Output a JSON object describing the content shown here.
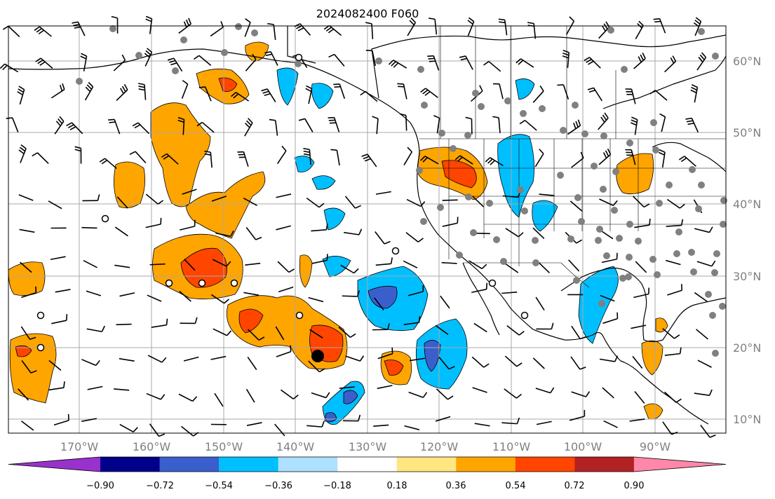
{
  "title": "2024082400 F060",
  "lat_labels": [
    "60°N",
    "50°N",
    "40°N",
    "30°N",
    "20°N",
    "10°N"
  ],
  "lon_labels": [
    "170°W",
    "160°W",
    "150°W",
    "140°W",
    "130°W",
    "120°W",
    "110°W",
    "100°W",
    "90°W"
  ],
  "colorbar": {
    "labels": [
      "−0.90",
      "−0.72",
      "−0.54",
      "−0.36",
      "−0.18",
      "0.18",
      "0.36",
      "0.54",
      "0.72",
      "0.90"
    ],
    "colors": [
      "#9932cc",
      "#00008b",
      "#3a5fcd",
      "#00bfff",
      "#aee0ff",
      "#ffffff",
      "#ffe680",
      "#ffa500",
      "#ff4500",
      "#b22222",
      "#ff88aa"
    ]
  },
  "colors": {
    "orange": "#ffa500",
    "red_orange": "#ff4500",
    "light_blue": "#00bfff",
    "pale_blue": "#aee0ff",
    "mid_blue": "#3a5fcd",
    "station_dot": "#808080",
    "grid": "#a9a9a9"
  }
}
